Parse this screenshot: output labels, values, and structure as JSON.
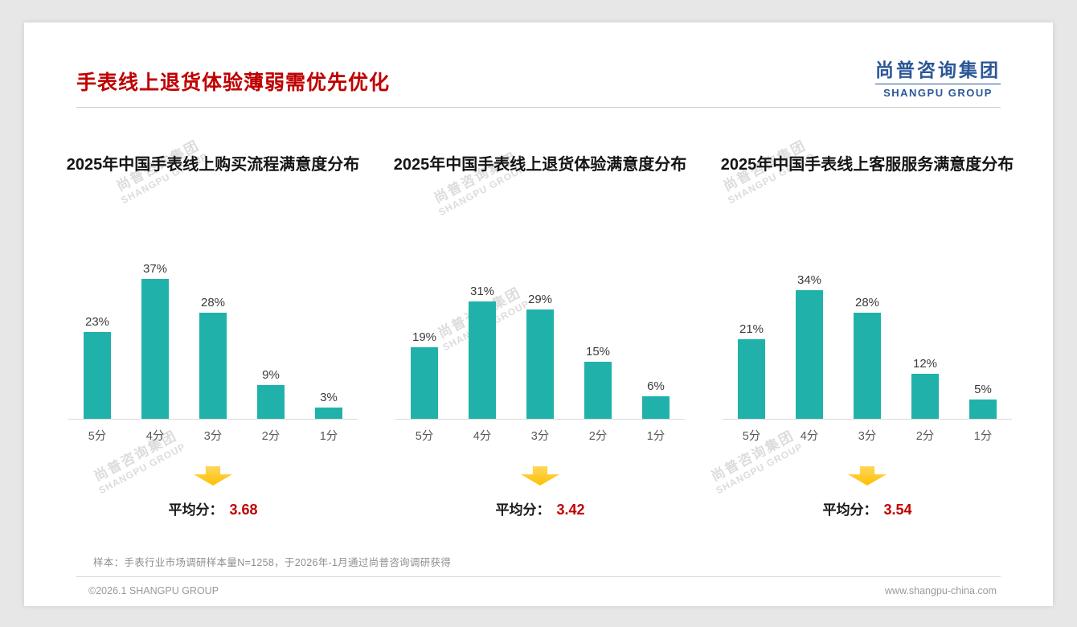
{
  "page": {
    "title": "手表线上退货体验薄弱需优先优化",
    "logo": {
      "cn": "尚普咨询集团",
      "en": "SHANGPU GROUP"
    },
    "watermark": {
      "cn": "尚普咨询集团",
      "en": "SHANGPU GROUP"
    },
    "footnote": "样本：手表行业市场调研样本量N=1258，于2026年-1月通过尚普咨询调研获得",
    "footer_left": "©2026.1 SHANGPU GROUP",
    "footer_right": "www.shangpu-china.com"
  },
  "colors": {
    "bar": "#20b2aa",
    "title": "#bf0000",
    "accent_red": "#c00000",
    "logo_blue": "#2b5797",
    "arrow": "#ffc000"
  },
  "chart_data": [
    {
      "type": "bar",
      "title": "2025年中国手表线上购买流程满意度分布",
      "categories": [
        "5分",
        "4分",
        "3分",
        "2分",
        "1分"
      ],
      "values": [
        23,
        37,
        28,
        9,
        3
      ],
      "unit": "%",
      "ylim": [
        0,
        40
      ],
      "grid": false,
      "average_label": "平均分：",
      "average": "3.68"
    },
    {
      "type": "bar",
      "title": "2025年中国手表线上退货体验满意度分布",
      "categories": [
        "5分",
        "4分",
        "3分",
        "2分",
        "1分"
      ],
      "values": [
        19,
        31,
        29,
        15,
        6
      ],
      "unit": "%",
      "ylim": [
        0,
        40
      ],
      "grid": false,
      "average_label": "平均分：",
      "average": "3.42"
    },
    {
      "type": "bar",
      "title": "2025年中国手表线上客服服务满意度分布",
      "categories": [
        "5分",
        "4分",
        "3分",
        "2分",
        "1分"
      ],
      "values": [
        21,
        34,
        28,
        12,
        5
      ],
      "unit": "%",
      "ylim": [
        0,
        40
      ],
      "grid": false,
      "average_label": "平均分：",
      "average": "3.54"
    }
  ]
}
